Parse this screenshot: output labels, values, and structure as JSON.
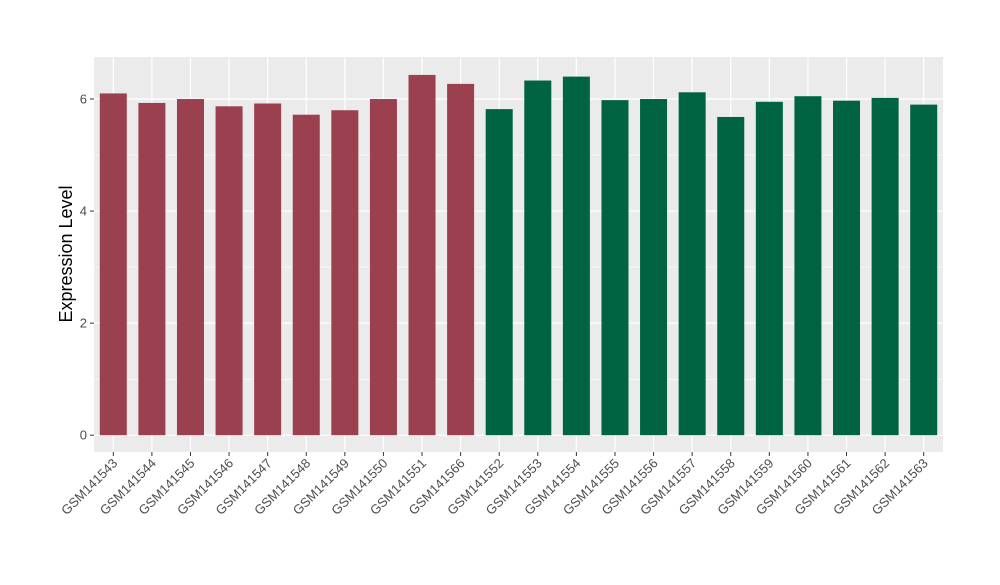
{
  "chart_data": {
    "type": "bar",
    "title": "",
    "xlabel": "",
    "ylabel": "Expression Level",
    "ylim": [
      -0.3,
      6.75
    ],
    "yticks": [
      0,
      2,
      4,
      6
    ],
    "grid": true,
    "categories": [
      "GSM141543",
      "GSM141544",
      "GSM141545",
      "GSM141546",
      "GSM141547",
      "GSM141548",
      "GSM141549",
      "GSM141550",
      "GSM141551",
      "GSM141566",
      "GSM141552",
      "GSM141553",
      "GSM141554",
      "GSM141555",
      "GSM141556",
      "GSM141557",
      "GSM141558",
      "GSM141559",
      "GSM141560",
      "GSM141561",
      "GSM141562",
      "GSM141563"
    ],
    "values": [
      6.1,
      5.93,
      6.0,
      5.87,
      5.92,
      5.72,
      5.8,
      6.0,
      6.43,
      6.27,
      5.82,
      6.33,
      6.4,
      5.98,
      6.0,
      6.12,
      5.68,
      5.95,
      6.05,
      5.97,
      6.02,
      5.9
    ],
    "groups": [
      0,
      0,
      0,
      0,
      0,
      0,
      0,
      0,
      0,
      0,
      1,
      1,
      1,
      1,
      1,
      1,
      1,
      1,
      1,
      1,
      1,
      1
    ],
    "group_colors": [
      "#9b404f",
      "#006442"
    ],
    "panel_color": "#ebebeb",
    "grid_color": "#ffffff"
  }
}
